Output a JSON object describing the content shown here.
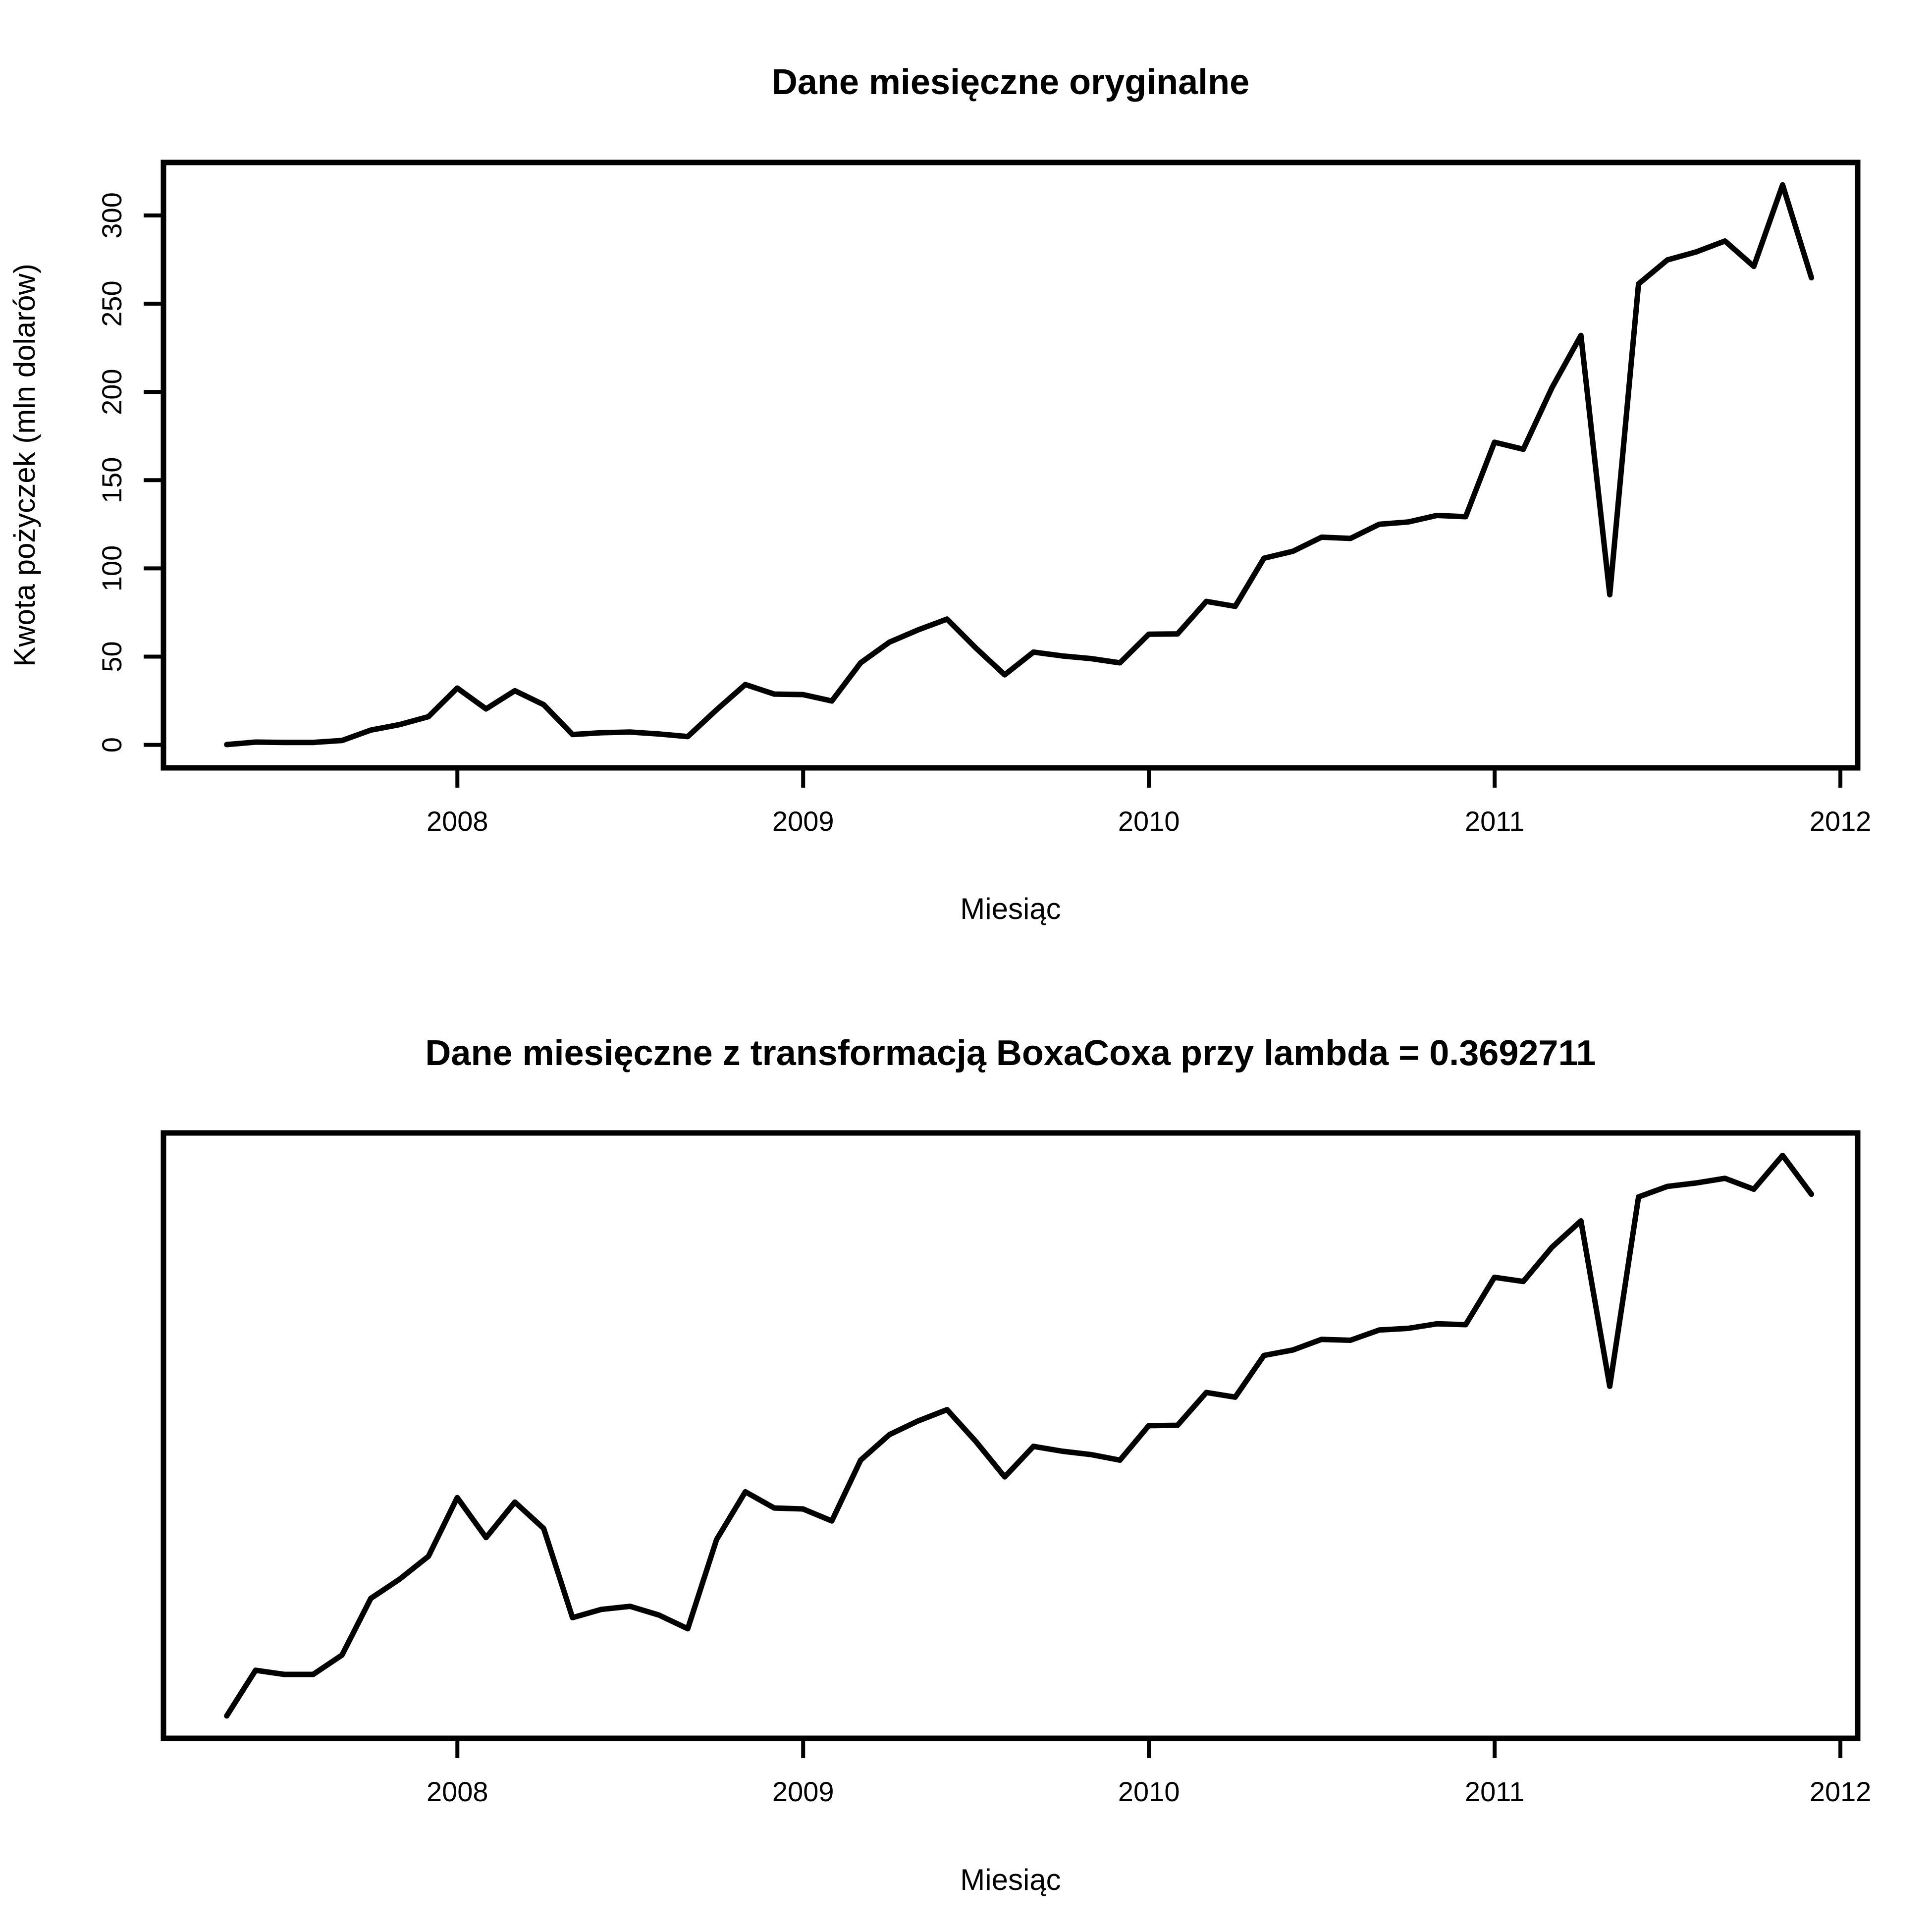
{
  "chart_data": [
    {
      "type": "line",
      "title": "Dane miesięczne oryginalne",
      "xlabel": "Miesiąc",
      "ylabel": "Kwota pożyczek (mln dolarów)",
      "xlim": [
        2007.15,
        2012.05
      ],
      "ylim": [
        -13,
        330
      ],
      "x_ticks": [
        2008,
        2009,
        2010,
        2011,
        2012
      ],
      "x_tick_labels": [
        "2008",
        "2009",
        "2010",
        "2011",
        "2012"
      ],
      "y_ticks": [
        0,
        50,
        100,
        150,
        200,
        250,
        300
      ],
      "y_tick_labels": [
        "0",
        "50",
        "100",
        "150",
        "200",
        "250",
        "300"
      ],
      "x_start": 2007.333,
      "x_step": 0.08333,
      "values": [
        0.2,
        1.6,
        1.4,
        1.4,
        2.5,
        8.4,
        11.5,
        16.0,
        32.2,
        20.4,
        30.7,
        22.8,
        5.9,
        6.9,
        7.3,
        6.2,
        4.7,
        19.9,
        34.2,
        28.8,
        28.5,
        24.9,
        46.5,
        58.2,
        65.2,
        71.3,
        54.9,
        39.7,
        52.6,
        50.4,
        48.9,
        46.5,
        62.7,
        62.9,
        81.3,
        78.5,
        105.8,
        109.7,
        117.7,
        117.0,
        125.0,
        126.3,
        130.0,
        129.3,
        171.5,
        167.5,
        202.5,
        232.0,
        85.1,
        261.2,
        274.8,
        279.3,
        285.5,
        271.1,
        317.3,
        264.7
      ]
    },
    {
      "type": "line",
      "title": "Dane miesięczne z transformacją BoxaCoxa przy lambda = 0.3692711",
      "xlabel": "Miesiąc",
      "ylabel": "",
      "lambda": 0.3692711,
      "xlim": [
        2007.15,
        2012.05
      ],
      "x_ticks": [
        2008,
        2009,
        2010,
        2011,
        2012
      ],
      "x_tick_labels": [
        "2008",
        "2009",
        "2010",
        "2011",
        "2012"
      ],
      "y_axis_visible": false,
      "x_start": 2007.333,
      "x_step": 0.08333,
      "values": [
        0.2,
        1.6,
        1.4,
        1.4,
        2.5,
        8.4,
        11.5,
        16.0,
        32.2,
        20.4,
        30.7,
        22.8,
        5.9,
        6.9,
        7.3,
        6.2,
        4.7,
        19.9,
        34.2,
        28.8,
        28.5,
        24.9,
        46.5,
        58.2,
        65.2,
        71.3,
        54.9,
        39.7,
        52.6,
        50.4,
        48.9,
        46.5,
        62.7,
        62.9,
        81.3,
        78.5,
        105.8,
        109.7,
        117.7,
        117.0,
        125.0,
        126.3,
        130.0,
        129.3,
        171.5,
        167.5,
        202.5,
        232.0,
        85.1,
        261.2,
        274.8,
        279.3,
        285.5,
        271.1,
        317.3,
        264.7
      ]
    }
  ]
}
